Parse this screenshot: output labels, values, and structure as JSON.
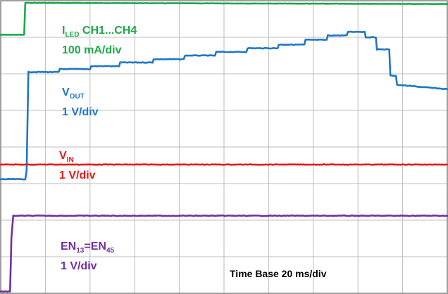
{
  "chart_data": {
    "type": "line",
    "title": "",
    "xlabel": "Time Base 20 ms/div",
    "ylabel": "",
    "grid": true,
    "x_divisions": 10,
    "y_divisions": 8,
    "series": [
      {
        "name": "I_LED CH1...CH4",
        "label_main": "I",
        "label_sub": "LED",
        "label_rest": " CH1...CH4",
        "scale": "100 mA/div",
        "color": "#1aaa4a",
        "x": [
          0,
          10.5,
          11.0,
          200
        ],
        "y": [
          7.07,
          7.07,
          7.94,
          7.91
        ]
      },
      {
        "name": "V_OUT",
        "label_main": "V",
        "label_sub": "OUT",
        "label_rest": "",
        "scale": "1 V/div",
        "color": "#1f77c4",
        "x": [
          0,
          11,
          11.6,
          12.4,
          26,
          26.5,
          40,
          40.5,
          53,
          53.5,
          68,
          68.5,
          82,
          82.5,
          96,
          96.5,
          110,
          110.5,
          124,
          124.5,
          136,
          136.5,
          146,
          146.5,
          155,
          155.5,
          163,
          163.5,
          168,
          168.5,
          174,
          174.5,
          177,
          177.5,
          200
        ],
        "y": [
          3.12,
          3.12,
          3.35,
          6.05,
          6.05,
          6.13,
          6.13,
          6.21,
          6.21,
          6.31,
          6.31,
          6.4,
          6.4,
          6.5,
          6.5,
          6.6,
          6.6,
          6.7,
          6.7,
          6.8,
          6.8,
          6.93,
          6.93,
          7.05,
          7.05,
          7.15,
          7.15,
          7.0,
          7.0,
          6.67,
          6.67,
          5.95,
          5.95,
          5.7,
          5.58
        ]
      },
      {
        "name": "V_IN",
        "label_main": "V",
        "label_sub": "IN",
        "label_rest": "",
        "scale": "1 V/div",
        "color": "#e8191b",
        "x": [
          0,
          200
        ],
        "y": [
          3.52,
          3.52
        ]
      },
      {
        "name": "EN_13=EN_45",
        "label_main": "EN",
        "label_sub": "13",
        "label_rest": "=EN",
        "label_sub2": "45",
        "scale": "1 V/div",
        "color": "#7030a0",
        "x": [
          0,
          4.2,
          4.8,
          5.6,
          200
        ],
        "y": [
          0.05,
          0.05,
          1.5,
          2.12,
          2.12
        ]
      }
    ]
  }
}
